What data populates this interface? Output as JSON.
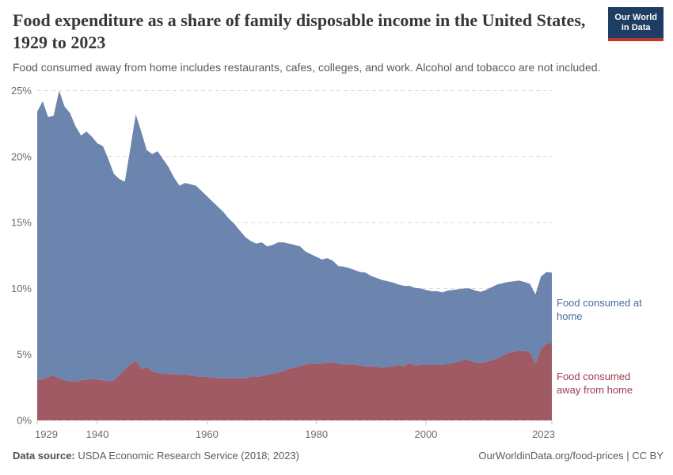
{
  "header": {
    "logo": {
      "line1": "Our World",
      "line2": "in Data"
    }
  },
  "chart_data": {
    "type": "area",
    "stacked": true,
    "title": "Food expenditure as a share of family disposable income in the United States, 1929 to 2023",
    "subtitle": "Food consumed away from home includes restaurants, cafes, colleges, and work. Alcohol and tobacco are not included.",
    "xlabel": "",
    "ylabel": "",
    "xlim": [
      1929,
      2023
    ],
    "ylim": [
      0,
      25
    ],
    "grid": "horizontal-dashed",
    "legend_position": "right-edge-labels",
    "x_ticks": {
      "values": [
        1929,
        1940,
        1960,
        1980,
        2000,
        2023
      ],
      "labels": [
        "1929",
        "1940",
        "1960",
        "1980",
        "2000",
        "2023"
      ]
    },
    "y_ticks": {
      "values": [
        0,
        5,
        10,
        15,
        20,
        25
      ],
      "labels": [
        "0%",
        "5%",
        "10%",
        "15%",
        "20%",
        "25%"
      ]
    },
    "x": [
      1929,
      1930,
      1931,
      1932,
      1933,
      1934,
      1935,
      1936,
      1937,
      1938,
      1939,
      1940,
      1941,
      1942,
      1943,
      1944,
      1945,
      1946,
      1947,
      1948,
      1949,
      1950,
      1951,
      1952,
      1953,
      1954,
      1955,
      1956,
      1957,
      1958,
      1959,
      1960,
      1961,
      1962,
      1963,
      1964,
      1965,
      1966,
      1967,
      1968,
      1969,
      1970,
      1971,
      1972,
      1973,
      1974,
      1975,
      1976,
      1977,
      1978,
      1979,
      1980,
      1981,
      1982,
      1983,
      1984,
      1985,
      1986,
      1987,
      1988,
      1989,
      1990,
      1991,
      1992,
      1993,
      1994,
      1995,
      1996,
      1997,
      1998,
      1999,
      2000,
      2001,
      2002,
      2003,
      2004,
      2005,
      2006,
      2007,
      2008,
      2009,
      2010,
      2011,
      2012,
      2013,
      2014,
      2015,
      2016,
      2017,
      2018,
      2019,
      2020,
      2021,
      2022,
      2023
    ],
    "series": [
      {
        "name": "Food consumed away from home",
        "fill_color": "#8b3642",
        "label_color": "#9d3a4d",
        "values": [
          3.05,
          3.1,
          3.3,
          3.4,
          3.2,
          3.05,
          2.95,
          2.95,
          3.05,
          3.1,
          3.15,
          3.1,
          3.05,
          2.95,
          3.05,
          3.45,
          3.85,
          4.25,
          4.5,
          3.9,
          4.05,
          3.7,
          3.6,
          3.55,
          3.5,
          3.5,
          3.45,
          3.5,
          3.4,
          3.35,
          3.3,
          3.3,
          3.25,
          3.2,
          3.2,
          3.2,
          3.2,
          3.2,
          3.2,
          3.3,
          3.3,
          3.35,
          3.45,
          3.55,
          3.6,
          3.75,
          3.9,
          4.0,
          4.1,
          4.25,
          4.3,
          4.3,
          4.3,
          4.35,
          4.4,
          4.3,
          4.25,
          4.25,
          4.25,
          4.15,
          4.1,
          4.1,
          4.05,
          4.0,
          4.05,
          4.1,
          4.2,
          4.1,
          4.35,
          4.15,
          4.2,
          4.2,
          4.2,
          4.2,
          4.2,
          4.3,
          4.35,
          4.45,
          4.6,
          4.55,
          4.4,
          4.35,
          4.45,
          4.55,
          4.7,
          4.9,
          5.1,
          5.2,
          5.3,
          5.3,
          5.15,
          4.3,
          5.4,
          5.8,
          5.9
        ]
      },
      {
        "name": "Food consumed at home",
        "fill_color": "#4c6a9c",
        "label_color": "#4c6a9c",
        "values": [
          20.35,
          21.1,
          19.7,
          19.7,
          21.8,
          20.75,
          20.35,
          19.35,
          18.55,
          18.8,
          18.35,
          17.9,
          17.75,
          16.85,
          15.65,
          14.85,
          14.25,
          16.35,
          18.7,
          18.0,
          16.45,
          16.5,
          16.8,
          16.25,
          15.7,
          14.9,
          14.35,
          14.5,
          14.5,
          14.45,
          14.1,
          13.7,
          13.35,
          13.0,
          12.6,
          12.1,
          11.7,
          11.2,
          10.7,
          10.3,
          10.1,
          10.15,
          9.75,
          9.75,
          9.9,
          9.75,
          9.5,
          9.3,
          9.1,
          8.55,
          8.3,
          8.1,
          7.9,
          7.95,
          7.7,
          7.4,
          7.4,
          7.3,
          7.15,
          7.1,
          7.1,
          6.85,
          6.75,
          6.65,
          6.5,
          6.35,
          6.1,
          6.1,
          5.85,
          5.9,
          5.8,
          5.7,
          5.6,
          5.6,
          5.5,
          5.55,
          5.55,
          5.5,
          5.4,
          5.45,
          5.45,
          5.4,
          5.45,
          5.55,
          5.6,
          5.5,
          5.4,
          5.35,
          5.3,
          5.2,
          5.2,
          5.25,
          5.5,
          5.45,
          5.3
        ]
      }
    ]
  },
  "footer": {
    "datasource_label": "Data source:",
    "datasource_text": " USDA Economic Research Service (2018; 2023)",
    "attribution": "OurWorldinData.org/food-prices | CC BY"
  },
  "colors": {
    "area_home": "#4c6a9c",
    "area_away": "#8b3642",
    "gridline": "#d9d9d9",
    "tick_label": "#6b6b6b",
    "logo_bg": "#1d3d63",
    "logo_stripe": "#c0362c"
  }
}
